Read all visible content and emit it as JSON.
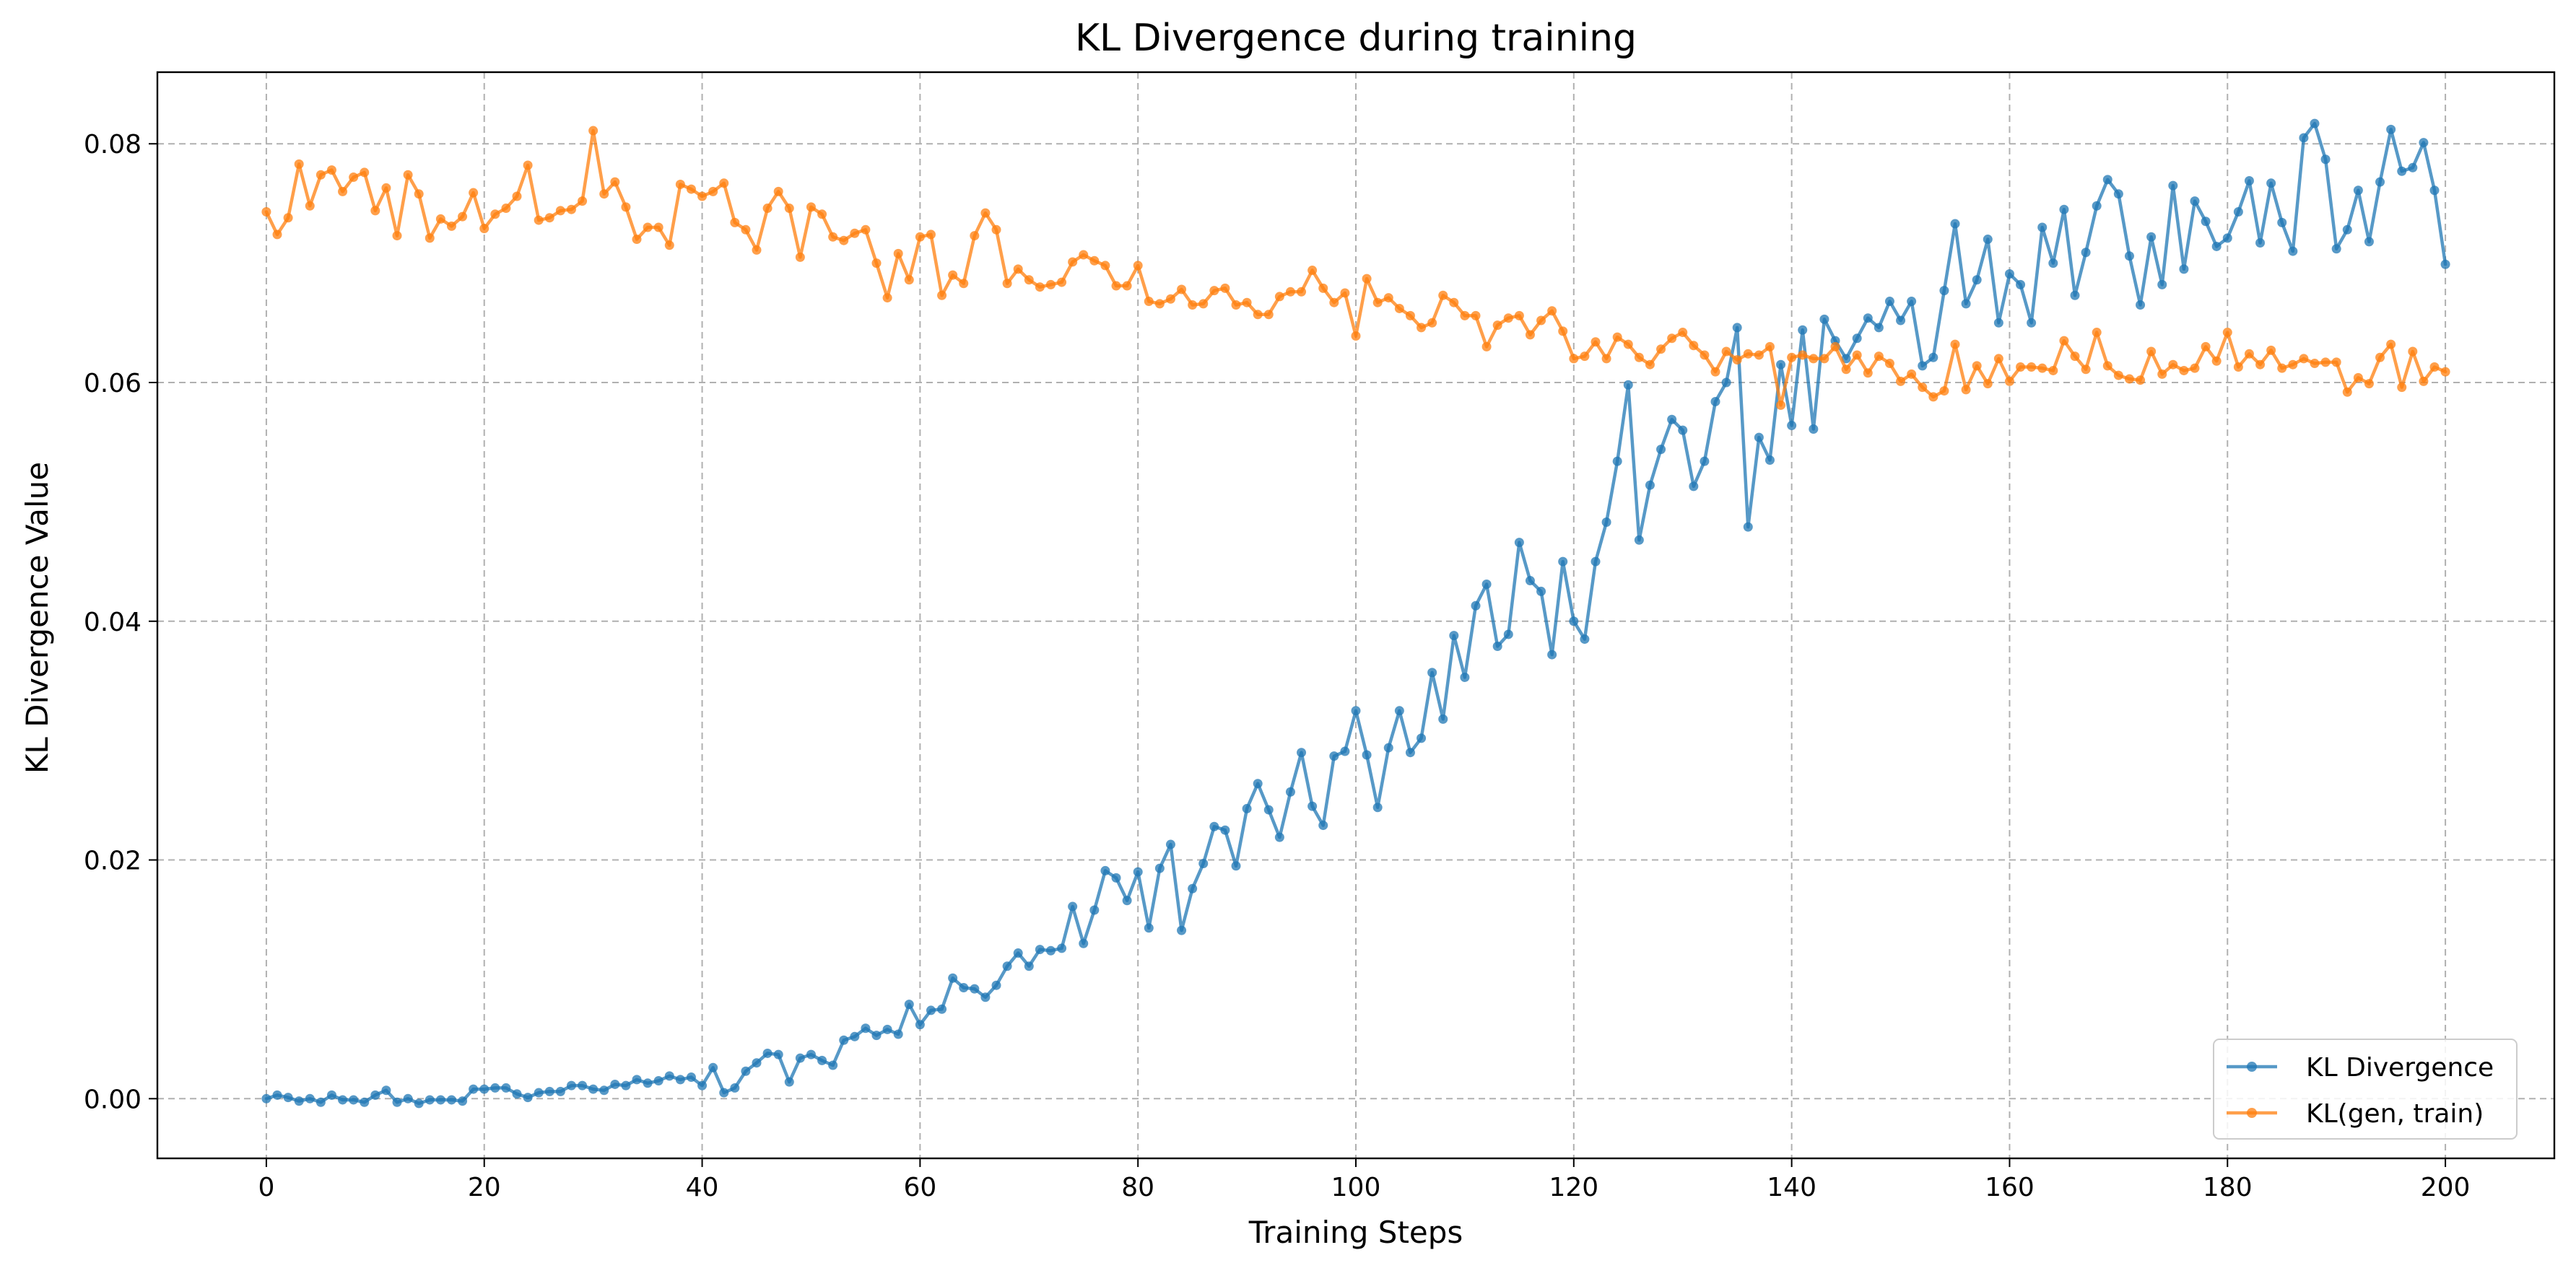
{
  "chart_data": {
    "type": "line",
    "title": "KL Divergence during training",
    "xlabel": "Training Steps",
    "ylabel": "KL Divergence Value",
    "xlim": [
      -10,
      210
    ],
    "ylim": [
      -0.005,
      0.086
    ],
    "xticks": [
      0,
      20,
      40,
      60,
      80,
      100,
      120,
      140,
      160,
      180,
      200
    ],
    "yticks": [
      0.0,
      0.02,
      0.04,
      0.06,
      0.08
    ],
    "xtick_labels": [
      "0",
      "20",
      "40",
      "60",
      "80",
      "100",
      "120",
      "140",
      "160",
      "180",
      "200"
    ],
    "ytick_labels": [
      "0.00",
      "0.02",
      "0.04",
      "0.06",
      "0.08"
    ],
    "grid": true,
    "legend_position": "bottom-right",
    "x_start": 0,
    "x_step": 1,
    "series": [
      {
        "name": "KL Divergence",
        "color": "#1f77b4",
        "values": [
          0.0,
          0.0003,
          0.0001,
          -0.0002,
          0.0,
          -0.0003,
          0.0003,
          -0.0001,
          -0.0001,
          -0.0003,
          0.0003,
          0.0007,
          -0.0003,
          0.0,
          -0.0004,
          -0.0001,
          -0.0001,
          -0.0001,
          -0.0002,
          0.0008,
          0.0008,
          0.0009,
          0.0009,
          0.0004,
          0.0001,
          0.0005,
          0.0006,
          0.0006,
          0.0011,
          0.0011,
          0.0008,
          0.0007,
          0.0012,
          0.0011,
          0.0016,
          0.0013,
          0.0015,
          0.0019,
          0.0016,
          0.0018,
          0.0011,
          0.0026,
          0.0005,
          0.0009,
          0.0023,
          0.003,
          0.0038,
          0.0037,
          0.0014,
          0.0034,
          0.0037,
          0.0032,
          0.0028,
          0.0049,
          0.0052,
          0.0059,
          0.0053,
          0.0058,
          0.0054,
          0.0079,
          0.0062,
          0.0074,
          0.0075,
          0.0101,
          0.0093,
          0.0092,
          0.0085,
          0.0095,
          0.0111,
          0.0122,
          0.0111,
          0.0125,
          0.0124,
          0.0126,
          0.0161,
          0.013,
          0.0158,
          0.0191,
          0.0185,
          0.0166,
          0.019,
          0.0143,
          0.0193,
          0.0213,
          0.0141,
          0.0176,
          0.0197,
          0.0228,
          0.0225,
          0.0195,
          0.0243,
          0.0264,
          0.0242,
          0.0219,
          0.0257,
          0.029,
          0.0245,
          0.0229,
          0.0287,
          0.0291,
          0.0325,
          0.0288,
          0.0244,
          0.0294,
          0.0325,
          0.029,
          0.0302,
          0.0357,
          0.0318,
          0.0388,
          0.0353,
          0.0413,
          0.0431,
          0.0379,
          0.0389,
          0.0466,
          0.0434,
          0.0425,
          0.0372,
          0.045,
          0.04,
          0.0385,
          0.045,
          0.0483,
          0.0534,
          0.0598,
          0.0468,
          0.0514,
          0.0544,
          0.0569,
          0.056,
          0.0513,
          0.0534,
          0.0584,
          0.06,
          0.0646,
          0.0479,
          0.0554,
          0.0535,
          0.0615,
          0.0564,
          0.0644,
          0.0561,
          0.0653,
          0.0635,
          0.062,
          0.0637,
          0.0654,
          0.0646,
          0.0668,
          0.0652,
          0.0668,
          0.0614,
          0.0621,
          0.0677,
          0.0733,
          0.0666,
          0.0686,
          0.072,
          0.065,
          0.0691,
          0.0682,
          0.065,
          0.073,
          0.07,
          0.0745,
          0.0673,
          0.0709,
          0.0748,
          0.077,
          0.0758,
          0.0706,
          0.0665,
          0.0722,
          0.0682,
          0.0765,
          0.0695,
          0.0752,
          0.0735,
          0.0714,
          0.0721,
          0.0743,
          0.0769,
          0.0717,
          0.0767,
          0.0734,
          0.071,
          0.0805,
          0.0817,
          0.0787,
          0.0712,
          0.0728,
          0.0761,
          0.0718,
          0.0768,
          0.0812,
          0.0777,
          0.078,
          0.0801,
          0.0761,
          0.0699
        ]
      },
      {
        "name": "KL(gen, train)",
        "color": "#ff7f0e",
        "values": [
          0.0743,
          0.0724,
          0.0738,
          0.0783,
          0.0748,
          0.0774,
          0.0778,
          0.076,
          0.0772,
          0.0776,
          0.0744,
          0.0763,
          0.0723,
          0.0774,
          0.0758,
          0.0721,
          0.0737,
          0.0731,
          0.0739,
          0.0759,
          0.0729,
          0.0741,
          0.0746,
          0.0756,
          0.0782,
          0.0736,
          0.0738,
          0.0744,
          0.0745,
          0.0752,
          0.0811,
          0.0758,
          0.0768,
          0.0747,
          0.072,
          0.073,
          0.073,
          0.0715,
          0.0766,
          0.0762,
          0.0756,
          0.076,
          0.0767,
          0.0734,
          0.0728,
          0.0711,
          0.0746,
          0.076,
          0.0746,
          0.0705,
          0.0747,
          0.0741,
          0.0722,
          0.0719,
          0.0725,
          0.0728,
          0.07,
          0.0671,
          0.0708,
          0.0686,
          0.0722,
          0.0724,
          0.0673,
          0.069,
          0.0683,
          0.0723,
          0.0742,
          0.0728,
          0.0683,
          0.0695,
          0.0686,
          0.068,
          0.0682,
          0.0684,
          0.0701,
          0.0707,
          0.0702,
          0.0698,
          0.0681,
          0.0681,
          0.0698,
          0.0668,
          0.0666,
          0.067,
          0.0678,
          0.0665,
          0.0666,
          0.0677,
          0.0679,
          0.0665,
          0.0667,
          0.0657,
          0.0657,
          0.0672,
          0.0676,
          0.0676,
          0.0694,
          0.0679,
          0.0667,
          0.0675,
          0.0639,
          0.0687,
          0.0667,
          0.0671,
          0.0662,
          0.0656,
          0.0646,
          0.065,
          0.0673,
          0.0667,
          0.0656,
          0.0656,
          0.063,
          0.0648,
          0.0654,
          0.0656,
          0.064,
          0.0652,
          0.066,
          0.0643,
          0.062,
          0.0622,
          0.0634,
          0.062,
          0.0638,
          0.0632,
          0.0621,
          0.0615,
          0.0628,
          0.0637,
          0.0642,
          0.0631,
          0.0623,
          0.0609,
          0.0626,
          0.0619,
          0.0624,
          0.0623,
          0.063,
          0.0581,
          0.0621,
          0.0623,
          0.062,
          0.062,
          0.063,
          0.0611,
          0.0623,
          0.0608,
          0.0622,
          0.0616,
          0.0601,
          0.0607,
          0.0596,
          0.0588,
          0.0593,
          0.0632,
          0.0594,
          0.0614,
          0.0599,
          0.062,
          0.0601,
          0.0613,
          0.0613,
          0.0612,
          0.061,
          0.0635,
          0.0622,
          0.0611,
          0.0642,
          0.0614,
          0.0606,
          0.0603,
          0.0602,
          0.0626,
          0.0607,
          0.0615,
          0.061,
          0.0612,
          0.063,
          0.0618,
          0.0642,
          0.0613,
          0.0624,
          0.0615,
          0.0627,
          0.0612,
          0.0615,
          0.062,
          0.0616,
          0.0617,
          0.0617,
          0.0592,
          0.0604,
          0.0599,
          0.0621,
          0.0632,
          0.0596,
          0.0626,
          0.0601,
          0.0613,
          0.0609
        ]
      }
    ]
  }
}
